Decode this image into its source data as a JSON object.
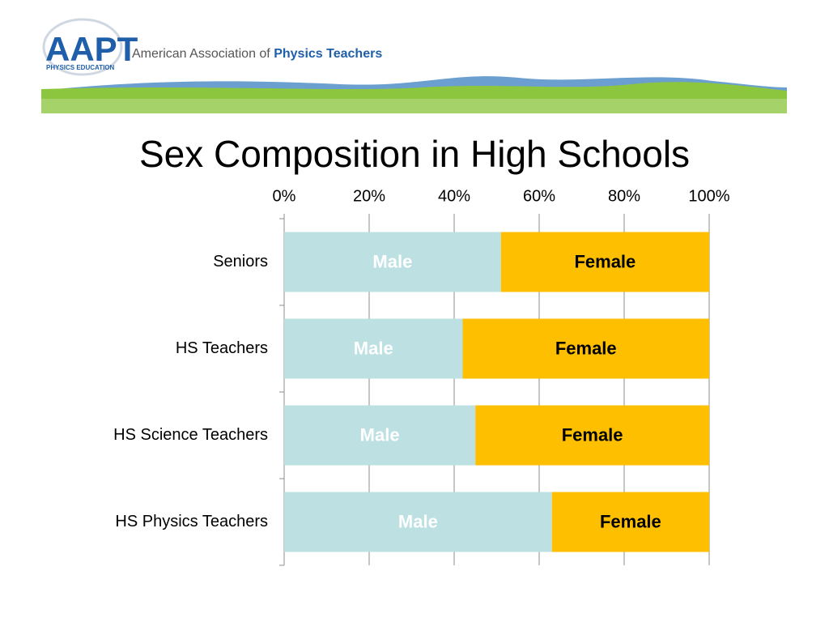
{
  "header": {
    "logo": "AAPT",
    "logo_subtitle": "PHYSICS EDUCATION",
    "org_name": "American Association of",
    "org_name_emphasis": "Physics Teachers"
  },
  "chart_data": {
    "type": "bar",
    "orientation": "horizontal",
    "stacked": true,
    "title": "Sex Composition in High Schools",
    "categories": [
      "Seniors",
      "HS Teachers",
      "HS Science Teachers",
      "HS Physics Teachers"
    ],
    "series": [
      {
        "name": "Male",
        "color": "#bde0e2",
        "label_color": "#ffffff",
        "values": [
          51,
          42,
          45,
          63
        ]
      },
      {
        "name": "Female",
        "color": "#fdbf00",
        "label_color": "#000000",
        "values": [
          49,
          58,
          55,
          37
        ]
      }
    ],
    "xlim": [
      0,
      100
    ],
    "xticks": [
      {
        "value": 0,
        "label": "0%"
      },
      {
        "value": 20,
        "label": "20%"
      },
      {
        "value": 40,
        "label": "40%"
      },
      {
        "value": 60,
        "label": "60%"
      },
      {
        "value": 80,
        "label": "80%"
      },
      {
        "value": 100,
        "label": "100%"
      }
    ],
    "grid": true
  }
}
